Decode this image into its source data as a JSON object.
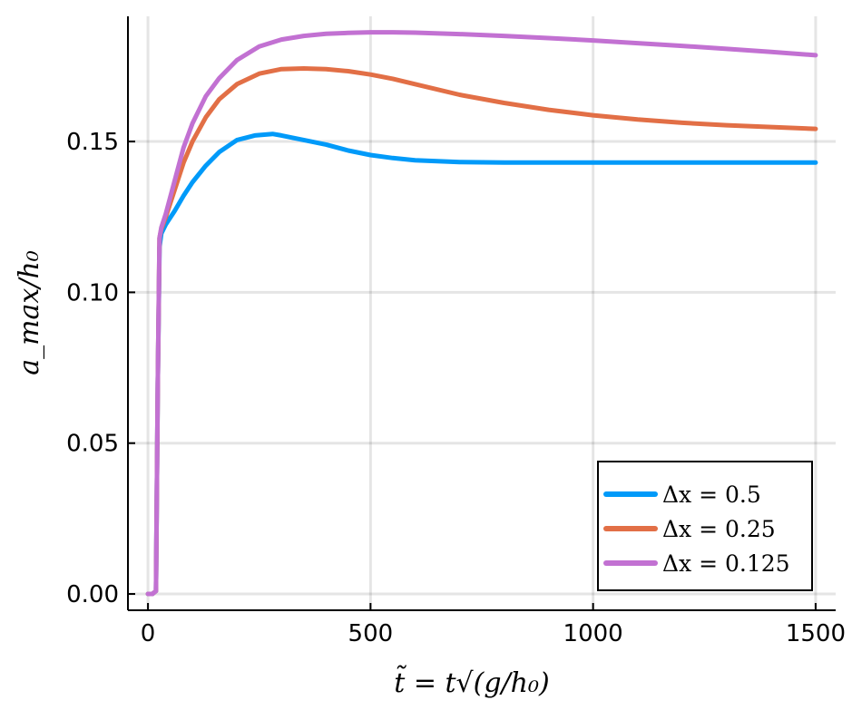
{
  "chart_data": {
    "type": "line",
    "title": "",
    "xlabel": "t̃ = t√(g/h₀)",
    "ylabel": "a_max/h₀",
    "xlim": [
      -45,
      1545
    ],
    "ylim": [
      -0.0054,
      0.1915
    ],
    "xticks": [
      0,
      500,
      1000,
      1500
    ],
    "xtick_labels": [
      "0",
      "500",
      "1000",
      "1500"
    ],
    "yticks": [
      0.0,
      0.05,
      0.1,
      0.15
    ],
    "ytick_labels": [
      "0.00",
      "0.05",
      "0.10",
      "0.15"
    ],
    "grid": true,
    "legend_position": "bottom-right",
    "series": [
      {
        "name": "Δx = 0.5",
        "color": "#009af9",
        "x": [
          0,
          10,
          18,
          22,
          26,
          30,
          40,
          60,
          80,
          100,
          130,
          160,
          200,
          240,
          280,
          300,
          350,
          400,
          450,
          500,
          550,
          600,
          700,
          800,
          900,
          1000,
          1100,
          1200,
          1300,
          1400,
          1500
        ],
        "y": [
          0.0,
          0.0,
          0.001,
          0.07,
          0.115,
          0.1195,
          0.1225,
          0.127,
          0.132,
          0.1365,
          0.142,
          0.1465,
          0.1505,
          0.152,
          0.1525,
          0.152,
          0.1505,
          0.149,
          0.147,
          0.1455,
          0.1445,
          0.1438,
          0.1432,
          0.143,
          0.143,
          0.143,
          0.143,
          0.143,
          0.143,
          0.143,
          0.143
        ]
      },
      {
        "name": "Δx = 0.25",
        "color": "#e26f46",
        "x": [
          0,
          10,
          18,
          22,
          26,
          30,
          40,
          60,
          80,
          100,
          130,
          160,
          200,
          250,
          300,
          350,
          400,
          450,
          500,
          550,
          600,
          700,
          800,
          900,
          1000,
          1100,
          1200,
          1300,
          1400,
          1500
        ],
        "y": [
          0.0,
          0.0,
          0.001,
          0.07,
          0.118,
          0.121,
          0.125,
          0.134,
          0.143,
          0.15,
          0.158,
          0.164,
          0.169,
          0.1725,
          0.174,
          0.1742,
          0.174,
          0.1733,
          0.1722,
          0.1708,
          0.169,
          0.1655,
          0.1628,
          0.1605,
          0.1587,
          0.1573,
          0.1562,
          0.1554,
          0.1548,
          0.1542
        ]
      },
      {
        "name": "Δx = 0.125",
        "color": "#c271d2",
        "x": [
          0,
          10,
          18,
          22,
          26,
          30,
          40,
          60,
          80,
          100,
          130,
          160,
          200,
          250,
          300,
          350,
          400,
          450,
          500,
          550,
          600,
          700,
          800,
          900,
          1000,
          1100,
          1200,
          1300,
          1400,
          1500
        ],
        "y": [
          0.0,
          0.0,
          0.001,
          0.07,
          0.118,
          0.1215,
          0.126,
          0.137,
          0.148,
          0.156,
          0.165,
          0.171,
          0.177,
          0.1815,
          0.1838,
          0.185,
          0.1857,
          0.186,
          0.1862,
          0.1862,
          0.1861,
          0.1856,
          0.185,
          0.1843,
          0.1835,
          0.1826,
          0.1817,
          0.1807,
          0.1797,
          0.1786
        ]
      }
    ]
  }
}
